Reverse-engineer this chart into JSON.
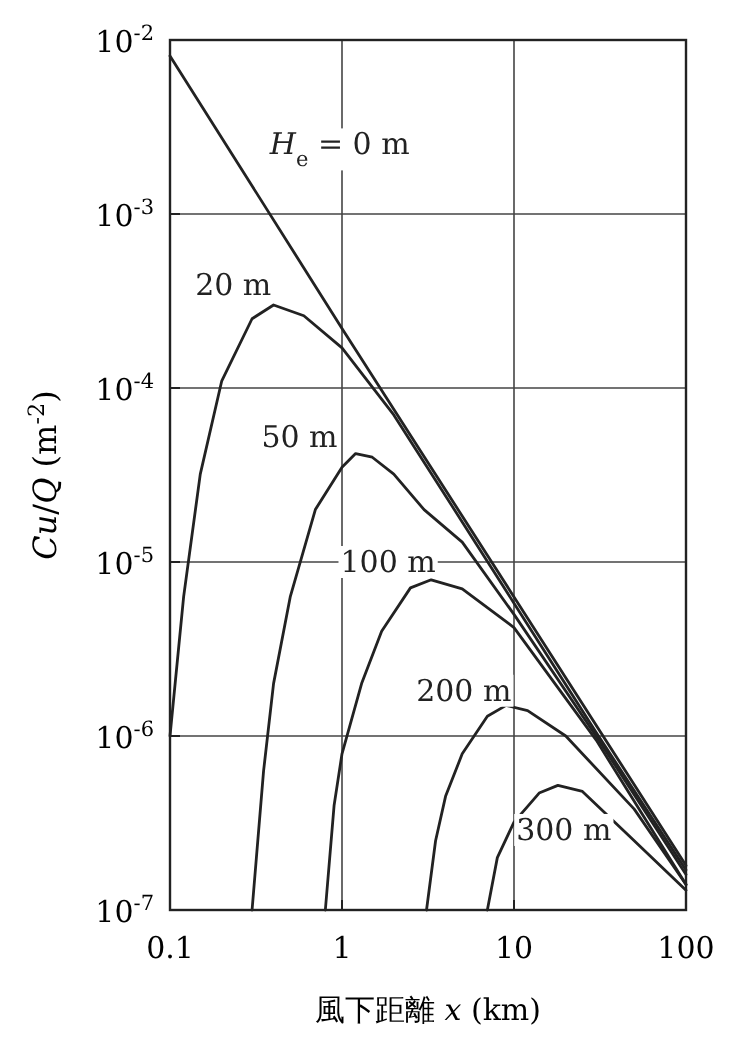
{
  "chart_data": {
    "type": "line",
    "xlabel": "風下距離 *x* (km)",
    "ylabel": "*Cu*/*Q* (m$^{-2}$)",
    "log": "xy",
    "xlim": [
      0.1,
      100
    ],
    "ylim": [
      1e-07,
      0.01
    ],
    "xticks": [
      0.1,
      1,
      10,
      100
    ],
    "yticks": [
      {
        "value": 1e-07,
        "label": "10$^{-7}$"
      },
      {
        "value": 1e-06,
        "label": "10$^{-6}$"
      },
      {
        "value": 1e-05,
        "label": "10$^{-5}$"
      },
      {
        "value": 0.0001,
        "label": "10$^{-4}$"
      },
      {
        "value": 0.001,
        "label": "10$^{-3}$"
      },
      {
        "value": 0.01,
        "label": "10$^{-2}$"
      }
    ],
    "grid": true,
    "marker": "none",
    "line_style": "solid",
    "series": [
      {
        "name": "*H*$_{e}$ = 0 m",
        "color": "#222222",
        "x": [
          0.1,
          1,
          10,
          100
        ],
        "values": [
          0.0081,
          0.00022,
          6.3e-06,
          1.8e-07
        ]
      },
      {
        "name": "20 m",
        "color": "#222222",
        "x": [
          0.1,
          0.12,
          0.15,
          0.2,
          0.3,
          0.4,
          0.6,
          1,
          2,
          5,
          10,
          30,
          100
        ],
        "values": [
          1e-06,
          6.3e-06,
          3.2e-05,
          0.00011,
          0.00025,
          0.0003,
          0.00026,
          0.00017,
          7e-05,
          1.7e-05,
          5.8e-06,
          1.05e-06,
          1.7e-07
        ]
      },
      {
        "name": "50 m",
        "color": "#222222",
        "x": [
          0.3,
          0.35,
          0.4,
          0.5,
          0.7,
          1,
          1.2,
          1.5,
          2,
          3,
          5,
          10,
          30,
          100
        ],
        "values": [
          1e-07,
          6.3e-07,
          2e-06,
          6.3e-06,
          2e-05,
          3.5e-05,
          4.2e-05,
          4e-05,
          3.2e-05,
          2e-05,
          1.3e-05,
          5e-06,
          1e-06,
          1.6e-07
        ]
      },
      {
        "name": "100 m",
        "color": "#222222",
        "x": [
          0.8,
          0.9,
          1,
          1.3,
          1.7,
          2.5,
          3.3,
          5,
          10,
          30,
          100
        ],
        "values": [
          1e-07,
          4e-07,
          7.9e-07,
          2e-06,
          4e-06,
          7.1e-06,
          7.9e-06,
          7e-06,
          4.2e-06,
          9.5e-07,
          1.4e-07
        ]
      },
      {
        "name": "200 m",
        "color": "#222222",
        "x": [
          3.1,
          3.5,
          4,
          5,
          7,
          9,
          12,
          20,
          50,
          100
        ],
        "values": [
          1e-07,
          2.5e-07,
          4.5e-07,
          7.9e-07,
          1.3e-06,
          1.5e-06,
          1.4e-06,
          1e-06,
          3.8e-07,
          1.4e-07
        ]
      },
      {
        "name": "300 m",
        "color": "#222222",
        "x": [
          7,
          8,
          10,
          14,
          18,
          25,
          50,
          100
        ],
        "values": [
          1e-07,
          2e-07,
          3.2e-07,
          4.7e-07,
          5.2e-07,
          4.8e-07,
          2.5e-07,
          1.3e-07
        ]
      }
    ]
  }
}
